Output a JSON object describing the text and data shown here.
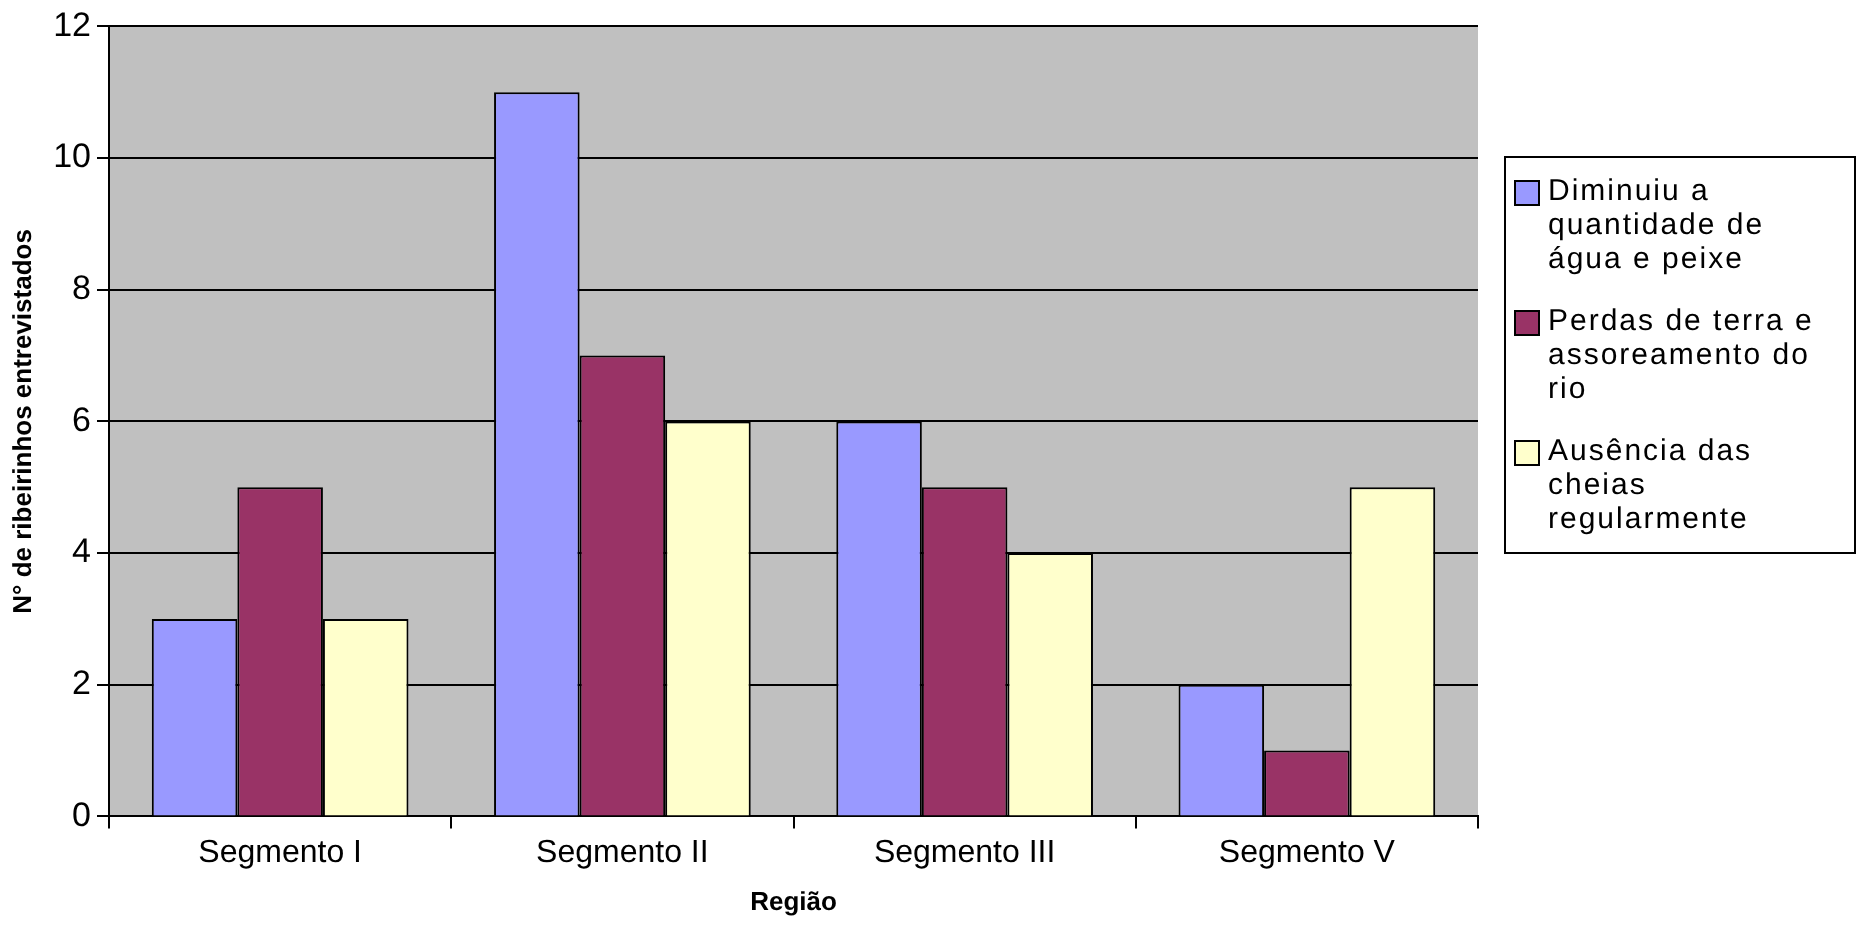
{
  "chart_data": {
    "type": "bar",
    "xlabel": "Região",
    "ylabel": "N° de ribeirinhos entrevistados",
    "categories": [
      "Segmento I",
      "Segmento II",
      "Segmento III",
      "Segmento V"
    ],
    "series": [
      {
        "name": "Diminuiu a quantidade de água e peixe",
        "color": "#9999ff",
        "values": [
          3,
          11,
          6,
          2
        ]
      },
      {
        "name": "Perdas de terra e assoreamento do rio",
        "color": "#993366",
        "values": [
          5,
          7,
          5,
          1
        ]
      },
      {
        "name": "Ausência das cheias regularmente",
        "color": "#ffffcc",
        "values": [
          3,
          6,
          4,
          5
        ]
      }
    ],
    "ylim": [
      0,
      12
    ],
    "yticks": [
      0,
      2,
      4,
      6,
      8,
      10,
      12
    ],
    "grid": "y",
    "legend": "right"
  }
}
